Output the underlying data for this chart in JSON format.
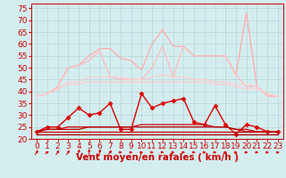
{
  "x": [
    0,
    1,
    2,
    3,
    4,
    5,
    6,
    7,
    8,
    9,
    10,
    11,
    12,
    13,
    14,
    15,
    16,
    17,
    18,
    19,
    20,
    21,
    22,
    23
  ],
  "series": [
    {
      "name": "max_gust_line",
      "color": "#ffaaaa",
      "lw": 0.9,
      "marker": null,
      "values": [
        38,
        39,
        42,
        50,
        51,
        55,
        58,
        58,
        54,
        53,
        49,
        60,
        66,
        59,
        59,
        55,
        55,
        55,
        55,
        47,
        73,
        42,
        38,
        38
      ]
    },
    {
      "name": "avg_gust_upper",
      "color": "#ffbbbb",
      "lw": 0.9,
      "marker": null,
      "values": [
        38,
        39,
        42,
        50,
        51,
        53,
        57,
        46,
        45,
        45,
        45,
        50,
        59,
        46,
        59,
        55,
        55,
        55,
        55,
        47,
        42,
        42,
        38,
        38
      ]
    },
    {
      "name": "avg_gust_band",
      "color": "#ffcccc",
      "lw": 0.9,
      "marker": null,
      "values": [
        38,
        39,
        41,
        44,
        44,
        46,
        46,
        46,
        46,
        45,
        45,
        46,
        47,
        46,
        46,
        45,
        45,
        44,
        44,
        43,
        43,
        42,
        39,
        38
      ]
    },
    {
      "name": "avg_gust_lower",
      "color": "#ffcccc",
      "lw": 0.9,
      "marker": null,
      "values": [
        38,
        39,
        41,
        43,
        43,
        44,
        44,
        44,
        44,
        44,
        44,
        44,
        44,
        44,
        44,
        44,
        44,
        43,
        43,
        42,
        41,
        41,
        39,
        38
      ]
    },
    {
      "name": "wind_main",
      "color": "#dd0000",
      "lw": 1.0,
      "marker": "D",
      "markersize": 2.5,
      "values": [
        23,
        25,
        25,
        29,
        33,
        30,
        31,
        35,
        24,
        24,
        39,
        33,
        35,
        36,
        37,
        27,
        26,
        34,
        26,
        22,
        26,
        25,
        23,
        23
      ]
    },
    {
      "name": "wind_avg1",
      "color": "#cc0000",
      "lw": 0.9,
      "marker": null,
      "values": [
        23,
        24,
        24,
        25,
        25,
        25,
        25,
        25,
        25,
        25,
        26,
        26,
        26,
        26,
        26,
        26,
        26,
        25,
        25,
        24,
        24,
        23,
        23,
        23
      ]
    },
    {
      "name": "wind_avg2",
      "color": "#bb0000",
      "lw": 0.9,
      "marker": null,
      "values": [
        23,
        24,
        24,
        24,
        24,
        25,
        25,
        25,
        25,
        25,
        25,
        25,
        25,
        25,
        25,
        25,
        25,
        25,
        25,
        24,
        23,
        23,
        23,
        23
      ]
    },
    {
      "name": "wind_flat1",
      "color": "#cc0000",
      "lw": 0.9,
      "marker": null,
      "values": [
        23,
        23,
        23,
        23,
        23,
        23,
        23,
        23,
        23,
        23,
        23,
        23,
        23,
        23,
        23,
        23,
        23,
        23,
        23,
        23,
        23,
        23,
        23,
        23
      ]
    },
    {
      "name": "wind_flat2",
      "color": "#aa0000",
      "lw": 0.9,
      "marker": null,
      "values": [
        22,
        22,
        22,
        22,
        22,
        22,
        22,
        22,
        22,
        22,
        22,
        22,
        22,
        22,
        22,
        22,
        22,
        22,
        22,
        22,
        22,
        22,
        22,
        22
      ]
    }
  ],
  "arrows": {
    "color": "#dd0000",
    "angles_deg": [
      45,
      25,
      45,
      45,
      70,
      90,
      70,
      45,
      0,
      0,
      0,
      0,
      0,
      0,
      0,
      0,
      0,
      0,
      0,
      0,
      0,
      0,
      0,
      0
    ]
  },
  "xlabel": "Vent moyen/en rafales ( km/h )",
  "xlabel_color": "#cc0000",
  "xlabel_fontsize": 7.5,
  "ylim": [
    20,
    77
  ],
  "yticks": [
    20,
    25,
    30,
    35,
    40,
    45,
    50,
    55,
    60,
    65,
    70,
    75
  ],
  "bg_color": "#d4eef0",
  "grid_color": "#b8d4d8",
  "tick_color": "#cc0000",
  "tick_fontsize": 6.5,
  "spine_color": "#cc0000"
}
